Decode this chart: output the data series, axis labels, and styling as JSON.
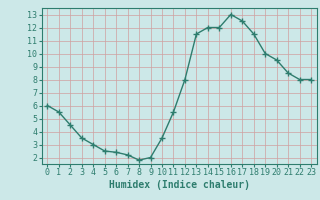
{
  "x": [
    0,
    1,
    2,
    3,
    4,
    5,
    6,
    7,
    8,
    9,
    10,
    11,
    12,
    13,
    14,
    15,
    16,
    17,
    18,
    19,
    20,
    21,
    22,
    23
  ],
  "y": [
    6.0,
    5.5,
    4.5,
    3.5,
    3.0,
    2.5,
    2.4,
    2.2,
    1.8,
    2.0,
    3.5,
    5.5,
    8.0,
    11.5,
    12.0,
    12.0,
    13.0,
    12.5,
    11.5,
    10.0,
    9.5,
    8.5,
    8.0,
    8.0
  ],
  "line_color": "#2e7d6e",
  "marker": "+",
  "marker_size": 4,
  "line_width": 1.0,
  "bg_color": "#cce8e8",
  "grid_color": "#b0d0d0",
  "xlabel": "Humidex (Indice chaleur)",
  "xlabel_fontsize": 7,
  "tick_fontsize": 6,
  "ylim": [
    1.5,
    13.5
  ],
  "xlim": [
    -0.5,
    23.5
  ],
  "yticks": [
    2,
    3,
    4,
    5,
    6,
    7,
    8,
    9,
    10,
    11,
    12,
    13
  ],
  "xticks": [
    0,
    1,
    2,
    3,
    4,
    5,
    6,
    7,
    8,
    9,
    10,
    11,
    12,
    13,
    14,
    15,
    16,
    17,
    18,
    19,
    20,
    21,
    22,
    23
  ]
}
